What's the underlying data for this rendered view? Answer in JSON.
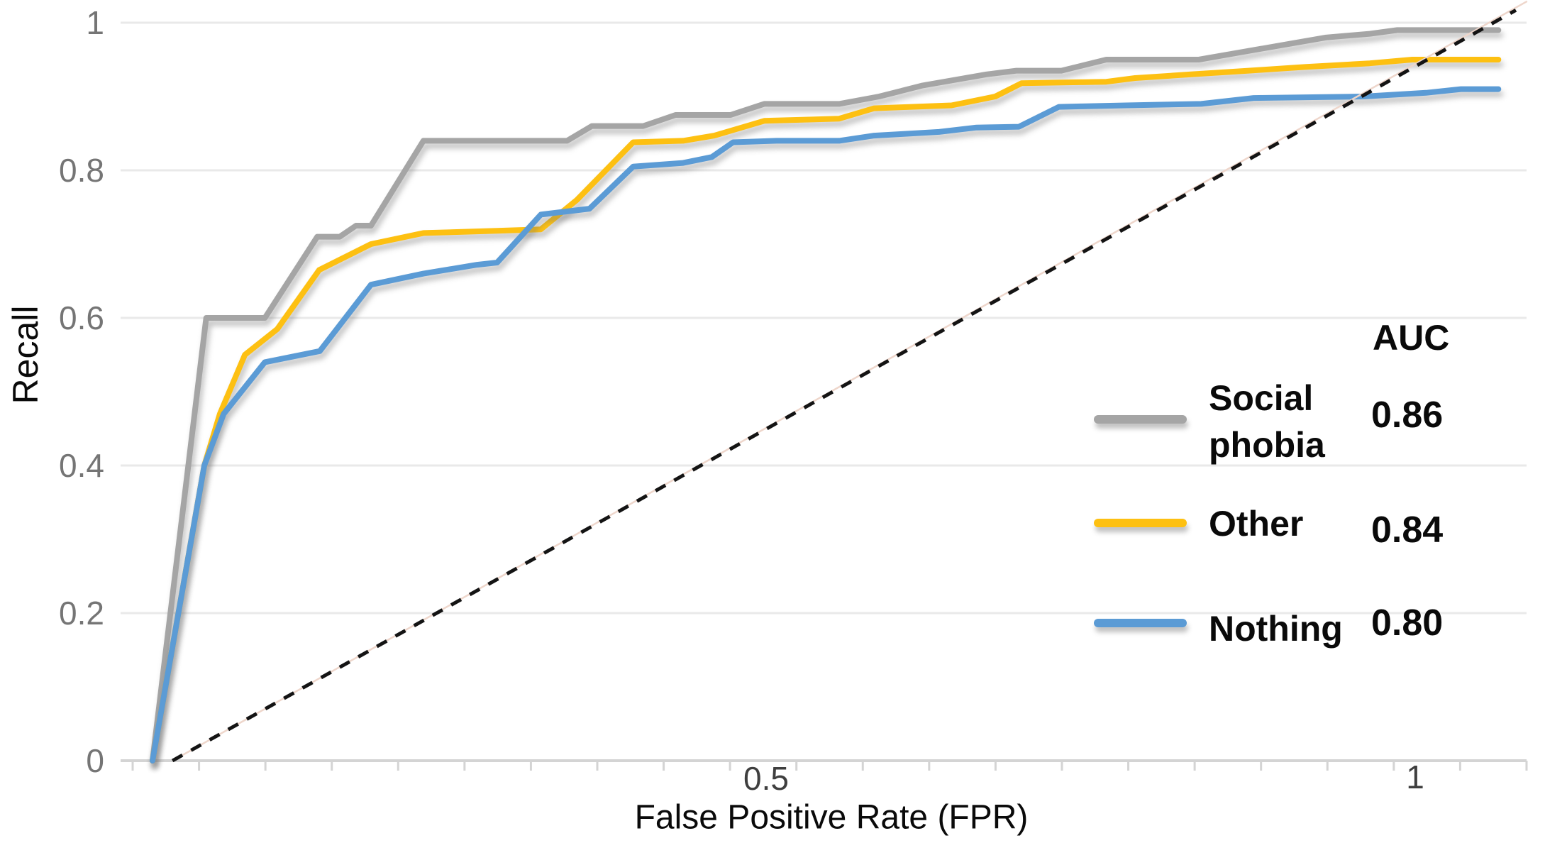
{
  "axes": {
    "y_title": "Recall",
    "x_title": "False Positive Rate (FPR)",
    "y_ticks": [
      "1",
      "0.8",
      "0.6",
      "0.4",
      "0.2",
      "0"
    ],
    "x_ticks": [
      "0.5",
      "1"
    ]
  },
  "legend": {
    "header": "AUC",
    "rows": [
      {
        "label_lines": [
          "Social",
          "phobia"
        ],
        "value": "0.86"
      },
      {
        "label_lines": [
          "Other"
        ],
        "value": "0.84"
      },
      {
        "label_lines": [
          "Nothing"
        ],
        "value": "0.80"
      }
    ]
  },
  "chart_data": {
    "type": "line",
    "title": "",
    "xlabel": "False Positive Rate (FPR)",
    "ylabel": "Recall",
    "xlim": [
      0,
      1.1
    ],
    "ylim": [
      0,
      1.02
    ],
    "grid": "horizontal",
    "x_tick_labels": [
      {
        "value": 0.5,
        "label": "0.5"
      },
      {
        "value": 1,
        "label": "1"
      }
    ],
    "y_tick_labels": [
      {
        "value": 1,
        "label": "1"
      },
      {
        "value": 0.8,
        "label": "0.8"
      },
      {
        "value": 0.6,
        "label": "0.6"
      },
      {
        "value": 0.4,
        "label": "0.4"
      },
      {
        "value": 0.2,
        "label": "0.2"
      },
      {
        "value": 0,
        "label": "0"
      }
    ],
    "legend_position": "inside-right",
    "legend_header": "AUC",
    "colors": {
      "gridline": "#e9e9e9",
      "axis_baseline": "#d4d4d4",
      "dashed_diagonal": "#141414",
      "faint_diagonal": "#eed6cb"
    },
    "series": [
      {
        "name": "Social phobia",
        "auc": 0.86,
        "color": "#a5a5a5",
        "points": [
          [
            0,
            0
          ],
          [
            0.043,
            0.6
          ],
          [
            0.09,
            0.6
          ],
          [
            0.132,
            0.71
          ],
          [
            0.15,
            0.71
          ],
          [
            0.163,
            0.725
          ],
          [
            0.175,
            0.725
          ],
          [
            0.217,
            0.84
          ],
          [
            0.332,
            0.84
          ],
          [
            0.352,
            0.86
          ],
          [
            0.393,
            0.86
          ],
          [
            0.419,
            0.875
          ],
          [
            0.463,
            0.875
          ],
          [
            0.49,
            0.89
          ],
          [
            0.55,
            0.89
          ],
          [
            0.582,
            0.9
          ],
          [
            0.617,
            0.915
          ],
          [
            0.668,
            0.93
          ],
          [
            0.692,
            0.935
          ],
          [
            0.728,
            0.935
          ],
          [
            0.764,
            0.95
          ],
          [
            0.838,
            0.95
          ],
          [
            0.872,
            0.96
          ],
          [
            0.906,
            0.97
          ],
          [
            0.94,
            0.98
          ],
          [
            0.975,
            0.985
          ],
          [
            0.997,
            0.99
          ],
          [
            1.078,
            0.99
          ]
        ]
      },
      {
        "name": "Other",
        "auc": 0.84,
        "color": "#fdc012",
        "points": [
          [
            0,
            0
          ],
          [
            0.0415,
            0.4
          ],
          [
            0.054,
            0.47
          ],
          [
            0.074,
            0.55
          ],
          [
            0.1,
            0.585
          ],
          [
            0.1335,
            0.665
          ],
          [
            0.175,
            0.7
          ],
          [
            0.217,
            0.715
          ],
          [
            0.276,
            0.718
          ],
          [
            0.311,
            0.72
          ],
          [
            0.34,
            0.76
          ],
          [
            0.385,
            0.838
          ],
          [
            0.425,
            0.84
          ],
          [
            0.45,
            0.847
          ],
          [
            0.49,
            0.867
          ],
          [
            0.55,
            0.87
          ],
          [
            0.578,
            0.884
          ],
          [
            0.64,
            0.888
          ],
          [
            0.675,
            0.9
          ],
          [
            0.696,
            0.918
          ],
          [
            0.764,
            0.92
          ],
          [
            0.787,
            0.925
          ],
          [
            0.832,
            0.93
          ],
          [
            0.878,
            0.935
          ],
          [
            0.923,
            0.94
          ],
          [
            0.975,
            0.945
          ],
          [
            1.009,
            0.95
          ],
          [
            1.078,
            0.95
          ]
        ]
      },
      {
        "name": "Nothing",
        "auc": 0.8,
        "color": "#5b9bd5",
        "points": [
          [
            0,
            0
          ],
          [
            0.0415,
            0.4
          ],
          [
            0.057,
            0.47
          ],
          [
            0.09,
            0.54
          ],
          [
            0.134,
            0.555
          ],
          [
            0.175,
            0.645
          ],
          [
            0.217,
            0.66
          ],
          [
            0.26,
            0.672
          ],
          [
            0.276,
            0.675
          ],
          [
            0.311,
            0.74
          ],
          [
            0.35,
            0.748
          ],
          [
            0.385,
            0.805
          ],
          [
            0.425,
            0.81
          ],
          [
            0.448,
            0.818
          ],
          [
            0.465,
            0.838
          ],
          [
            0.5,
            0.84
          ],
          [
            0.55,
            0.84
          ],
          [
            0.578,
            0.847
          ],
          [
            0.63,
            0.852
          ],
          [
            0.66,
            0.858
          ],
          [
            0.694,
            0.859
          ],
          [
            0.726,
            0.886
          ],
          [
            0.78,
            0.888
          ],
          [
            0.84,
            0.89
          ],
          [
            0.882,
            0.898
          ],
          [
            0.97,
            0.9
          ],
          [
            1.02,
            0.905
          ],
          [
            1.048,
            0.91
          ],
          [
            1.078,
            0.91
          ]
        ]
      }
    ],
    "reference_lines": [
      {
        "name": "faint-diagonal",
        "style": "solid",
        "color": "#eed6cb",
        "width": 2.5,
        "from": [
          0.016,
          0
        ],
        "to": [
          1.101,
          1.029
        ]
      },
      {
        "name": "chance-diagonal",
        "style": "dashed",
        "color": "#141414",
        "width": 5,
        "dash": "16 14",
        "from": [
          0.016,
          0
        ],
        "to": [
          1.092,
          1.017
        ]
      }
    ]
  }
}
